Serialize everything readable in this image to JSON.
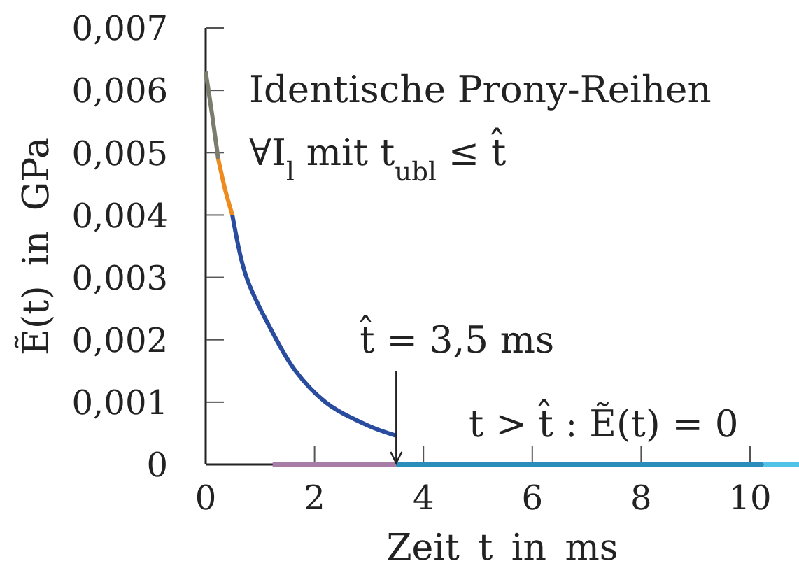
{
  "chart_data": {
    "type": "line",
    "xlabel": "Zeit t in ms",
    "ylabel": "Ẽ(t) in GPa",
    "xlim": [
      0,
      10.9
    ],
    "ylim": [
      0,
      0.007
    ],
    "xticks": [
      0,
      2,
      4,
      6,
      8,
      10
    ],
    "yticks": [
      0,
      {
        "value": 0.001,
        "label": "0,001"
      },
      {
        "value": 0.002,
        "label": "0,002"
      },
      {
        "value": 0.003,
        "label": "0,003"
      },
      {
        "value": 0.004,
        "label": "0,004"
      },
      {
        "value": 0.005,
        "label": "0,005"
      },
      {
        "value": 0.006,
        "label": "0,006"
      },
      {
        "value": 0.007,
        "label": "0,007"
      }
    ],
    "series": [
      {
        "color": "#7c7c6c",
        "x": [
          0,
          0.12,
          0.23
        ],
        "values": [
          0.0063,
          0.0056,
          0.0049
        ]
      },
      {
        "color": "#ef8a1e",
        "x": [
          0.23,
          0.36,
          0.49
        ],
        "values": [
          0.0049,
          0.0044,
          0.004
        ]
      },
      {
        "color": "#2a4c9f",
        "x": [
          0.49,
          0.6,
          0.75,
          1.0,
          1.3,
          1.65,
          2.2,
          2.7,
          3.1,
          3.5
        ],
        "values": [
          0.004,
          0.0035,
          0.003,
          0.0025,
          0.002,
          0.0015,
          0.001,
          0.00074,
          0.00058,
          0.00046
        ]
      },
      {
        "color": "#a77ca6",
        "x": [
          1.23,
          3.5
        ],
        "values": [
          0,
          0
        ]
      },
      {
        "color": "#2a8dbb",
        "x": [
          3.5,
          10.25
        ],
        "values": [
          0,
          0
        ]
      },
      {
        "color": "#52c2e8",
        "x": [
          10.25,
          10.9
        ],
        "values": [
          0,
          0
        ]
      }
    ],
    "annotations": [
      "Identische Prony-Reihen",
      "∀I$_{l}$ mit t$_{ubl}$ ≤ t̂",
      "t > t̂ : Ẽ(t) = 0",
      {
        "text": "t̂ = 3,5 ms",
        "x": 3.5,
        "y": 0
      }
    ]
  }
}
